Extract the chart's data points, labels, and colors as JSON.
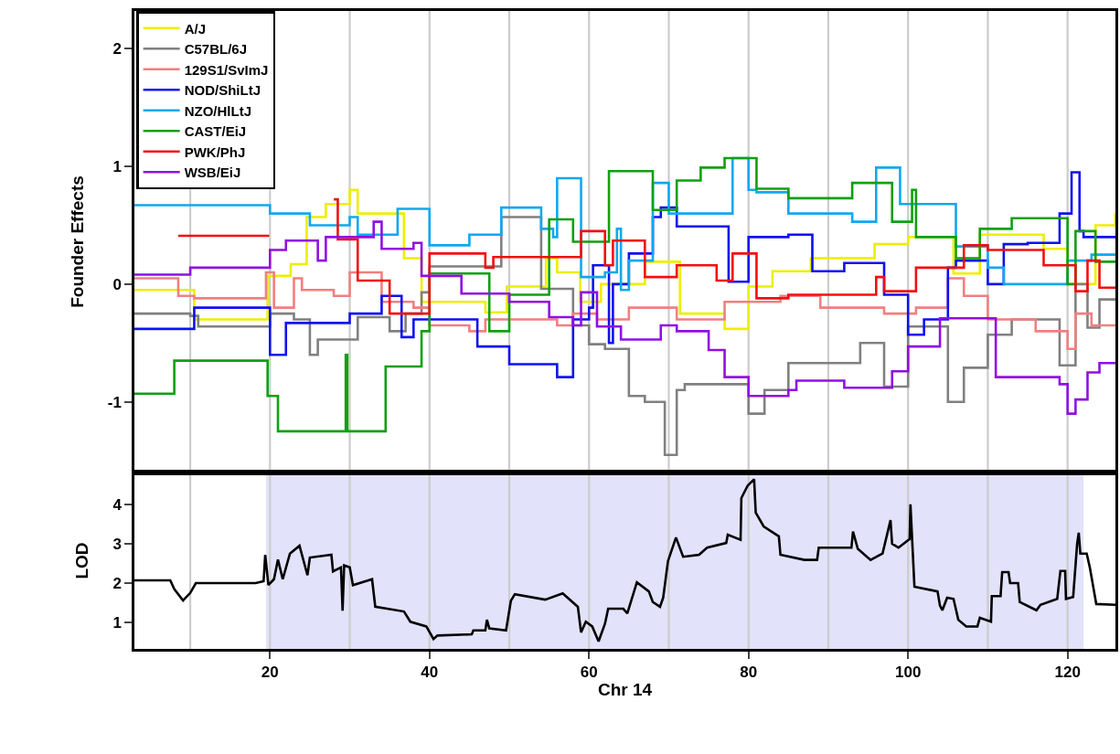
{
  "chart_data": [
    {
      "type": "step",
      "ylabel": "Founder Effects",
      "xlim": [
        3,
        126
      ],
      "ylim": [
        -1.6,
        2.32
      ],
      "yticks": [
        -1,
        0,
        1,
        2
      ],
      "tick_labels": "y",
      "legend": "top left",
      "ref_lines": [
        {
          "axis": "x",
          "value": 10,
          "color": "#cccccc"
        },
        {
          "axis": "x",
          "value": 20,
          "color": "#cccccc"
        },
        {
          "axis": "x",
          "value": 30,
          "color": "#cccccc"
        },
        {
          "axis": "x",
          "value": 40,
          "color": "#cccccc"
        },
        {
          "axis": "x",
          "value": 50,
          "color": "#cccccc"
        },
        {
          "axis": "x",
          "value": 60,
          "color": "#cccccc"
        },
        {
          "axis": "x",
          "value": 70,
          "color": "#cccccc"
        },
        {
          "axis": "x",
          "value": 80,
          "color": "#cccccc"
        },
        {
          "axis": "x",
          "value": 90,
          "color": "#cccccc"
        },
        {
          "axis": "x",
          "value": 100,
          "color": "#cccccc"
        },
        {
          "axis": "x",
          "value": 110,
          "color": "#cccccc"
        },
        {
          "axis": "x",
          "value": 120,
          "color": "#cccccc"
        }
      ],
      "series": [
        {
          "name": "A/J",
          "color": "#eeee00",
          "x": [
            3,
            10.5,
            19.7,
            22.6,
            24.6,
            27,
            30,
            31,
            36.8,
            39,
            43,
            47,
            49.7,
            54.6,
            56,
            58.9,
            61.5,
            67,
            71.4,
            77,
            80,
            83,
            87.8,
            95.8,
            100,
            105.7,
            109,
            117,
            120,
            123.5,
            126
          ],
          "values": [
            -0.05,
            -0.3,
            0.07,
            0.17,
            0.57,
            0.68,
            0.8,
            0.6,
            0.22,
            -0.15,
            -0.15,
            -0.24,
            -0.02,
            0.22,
            0.1,
            -0.15,
            0.0,
            0.19,
            -0.25,
            -0.38,
            -0.02,
            0.11,
            0.22,
            0.34,
            0.4,
            0.09,
            0.42,
            0.3,
            0.0,
            0.5,
            0.6
          ]
        },
        {
          "name": "C57BL/6J",
          "color": "#808080",
          "x": [
            3,
            10,
            11,
            20,
            23,
            25,
            26,
            31,
            35,
            37,
            39,
            40,
            49,
            54,
            58,
            60,
            62,
            65,
            67,
            69.5,
            71,
            72,
            80,
            82,
            85,
            94,
            97,
            100,
            105,
            107,
            110,
            113,
            119,
            121,
            122.5,
            124,
            126
          ],
          "values": [
            -0.25,
            -0.27,
            -0.36,
            -0.25,
            -0.3,
            -0.6,
            -0.47,
            -0.28,
            -0.4,
            -0.25,
            -0.07,
            0.15,
            0.57,
            -0.04,
            -0.35,
            -0.51,
            -0.55,
            -0.95,
            -1.0,
            -1.45,
            -0.9,
            -0.85,
            -1.1,
            -0.9,
            -0.67,
            -0.5,
            -0.87,
            -0.36,
            -1.0,
            -0.71,
            -0.43,
            -0.3,
            -0.69,
            0.0,
            -0.37,
            -0.13,
            -0.13
          ]
        },
        {
          "name": "129S1/SvImJ",
          "color": "#f08080",
          "x": [
            3,
            8.5,
            10.5,
            19.5,
            20.5,
            23,
            24,
            28,
            30,
            34,
            38,
            40,
            45,
            47,
            56,
            58,
            61,
            65,
            71,
            77,
            84,
            89,
            97,
            101,
            105,
            107,
            110,
            116,
            120,
            121,
            123,
            126
          ],
          "values": [
            0.05,
            -0.1,
            -0.12,
            0.1,
            -0.2,
            0.05,
            -0.05,
            -0.1,
            0.1,
            -0.15,
            -0.2,
            -0.35,
            -0.4,
            -0.3,
            -0.35,
            -0.25,
            -0.3,
            -0.2,
            -0.3,
            -0.15,
            -0.1,
            -0.2,
            -0.25,
            -0.2,
            0.05,
            -0.1,
            -0.3,
            -0.4,
            -0.55,
            -0.25,
            -0.35,
            -0.35
          ]
        },
        {
          "name": "NOD/ShiLtJ",
          "color": "#1010f0",
          "x": [
            3,
            10.5,
            20,
            22,
            30,
            34,
            36.5,
            38,
            43,
            46,
            50,
            56,
            58,
            60,
            60.5,
            62.5,
            63,
            65,
            68,
            69,
            71,
            77.5,
            80,
            85,
            88,
            92,
            97,
            100,
            102,
            105,
            106,
            110,
            112,
            115,
            119,
            120.5,
            121.5,
            122,
            126
          ],
          "values": [
            -0.38,
            -0.2,
            -0.6,
            -0.33,
            -0.25,
            -0.1,
            -0.45,
            -0.3,
            -0.3,
            -0.53,
            -0.68,
            -0.79,
            -0.3,
            -0.2,
            0.16,
            -0.5,
            0.0,
            0.26,
            0.57,
            0.65,
            0.49,
            0.02,
            0.4,
            0.42,
            0.11,
            0.18,
            -0.09,
            -0.43,
            -0.3,
            0.14,
            0.2,
            0.0,
            0.34,
            0.35,
            0.6,
            0.95,
            0.45,
            0.4,
            0.4
          ]
        },
        {
          "name": "NZO/HlLtJ",
          "color": "#10a8ef",
          "x": [
            3,
            20,
            25,
            30,
            31,
            36,
            40,
            45,
            49,
            54,
            55.5,
            56,
            59,
            62,
            63.5,
            64,
            65,
            68,
            70,
            78,
            80,
            81,
            85,
            93,
            96,
            99,
            106,
            110,
            112,
            120,
            123,
            126
          ],
          "values": [
            0.67,
            0.6,
            0.5,
            0.57,
            0.42,
            0.64,
            0.33,
            0.42,
            0.65,
            0.47,
            0.4,
            0.9,
            0.06,
            0.1,
            0.47,
            -0.05,
            0.2,
            0.86,
            0.6,
            1.07,
            0.8,
            0.78,
            0.6,
            0.53,
            0.99,
            0.68,
            0.32,
            0.14,
            0.0,
            0.2,
            0.25,
            0.25
          ]
        },
        {
          "name": "CAST/EiJ",
          "color": "#10a010",
          "x": [
            3,
            8,
            19.7,
            21,
            29.5,
            29.7,
            34.5,
            39,
            40,
            47.5,
            50,
            55,
            58,
            62.5,
            68,
            71,
            74,
            77,
            81,
            85,
            93,
            98,
            100.5,
            101,
            106,
            109,
            113,
            120,
            121,
            123.5,
            126
          ],
          "values": [
            -0.93,
            -0.65,
            -0.95,
            -1.25,
            -0.6,
            -1.25,
            -0.7,
            -0.4,
            0.09,
            -0.4,
            -0.09,
            0.55,
            0.36,
            0.96,
            0.63,
            0.88,
            0.99,
            1.07,
            0.81,
            0.73,
            0.86,
            0.53,
            0.8,
            0.4,
            0.22,
            0.47,
            0.56,
            0.0,
            0.45,
            0.19,
            0.19
          ]
        },
        {
          "name": "PWK/PhJ",
          "color": "#f01010",
          "x": [
            8.5,
            19.9,
            20,
            28,
            28.5,
            31,
            35,
            40,
            47,
            48,
            59,
            62,
            63,
            67,
            71,
            76,
            78,
            81,
            85,
            96,
            97,
            101,
            107,
            110,
            117,
            121,
            122.5,
            124,
            126
          ],
          "values": [
            0.41,
            0.41,
            null,
            0.72,
            0.38,
            0.03,
            -0.25,
            0.26,
            0.14,
            0.23,
            0.45,
            0.16,
            0.37,
            0.06,
            0.16,
            0.03,
            0.26,
            -0.12,
            -0.09,
            0.06,
            -0.06,
            0.14,
            0.33,
            0.29,
            0.16,
            -0.06,
            0.2,
            -0.03,
            -0.03
          ]
        },
        {
          "name": "WSB/EiJ",
          "color": "#9010e0",
          "x": [
            3,
            10,
            20,
            22,
            26,
            27,
            33,
            34,
            38,
            39,
            44,
            50,
            55,
            58,
            59,
            61,
            64,
            69,
            71,
            75,
            77,
            80,
            85,
            86,
            92,
            98,
            100,
            104,
            111,
            119,
            120,
            121,
            122.5,
            124,
            126
          ],
          "values": [
            0.08,
            0.14,
            0.29,
            0.37,
            0.2,
            0.4,
            0.53,
            0.3,
            0.35,
            0.07,
            -0.08,
            -0.15,
            -0.28,
            -0.35,
            -0.07,
            -0.36,
            -0.47,
            -0.35,
            -0.4,
            -0.56,
            -0.79,
            -0.95,
            -0.9,
            -0.82,
            -0.88,
            -0.74,
            -0.53,
            -0.29,
            -0.79,
            -0.85,
            -1.1,
            -0.98,
            -0.75,
            -0.67,
            -0.67
          ]
        }
      ]
    },
    {
      "type": "line",
      "ylabel": "LOD",
      "xlabel": "Chr 14",
      "xlim": [
        3,
        126
      ],
      "xticks": [
        20,
        40,
        60,
        80,
        100,
        120
      ],
      "ylim": [
        0.33,
        4.81
      ],
      "yticks": [
        1,
        2,
        3,
        4
      ],
      "color": "#000000",
      "ref_lines": [
        {
          "axis": "x",
          "value": 10,
          "color": "#cccccc"
        },
        {
          "axis": "x",
          "value": 20,
          "color": "#cccccc"
        },
        {
          "axis": "x",
          "value": 30,
          "color": "#cccccc"
        },
        {
          "axis": "x",
          "value": 40,
          "color": "#cccccc"
        },
        {
          "axis": "x",
          "value": 50,
          "color": "#cccccc"
        },
        {
          "axis": "x",
          "value": 60,
          "color": "#cccccc"
        },
        {
          "axis": "x",
          "value": 70,
          "color": "#cccccc"
        },
        {
          "axis": "x",
          "value": 80,
          "color": "#cccccc"
        },
        {
          "axis": "x",
          "value": 90,
          "color": "#cccccc"
        },
        {
          "axis": "x",
          "value": 100,
          "color": "#cccccc"
        },
        {
          "axis": "x",
          "value": 110,
          "color": "#cccccc"
        },
        {
          "axis": "x",
          "value": 120,
          "color": "#cccccc"
        }
      ],
      "bands": [
        {
          "axis": "x",
          "from": 19.5,
          "to": 122,
          "color": "#e2e2fb"
        }
      ],
      "x": [
        3,
        7.5,
        8,
        9.1,
        10,
        10.7,
        18.2,
        19.2,
        19.4,
        19.8,
        20.5,
        21,
        21.6,
        22.5,
        23.7,
        24.3,
        24.7,
        25,
        27.7,
        27.9,
        28.9,
        29.1,
        29.3,
        30,
        30.4,
        32.8,
        33.2,
        36.8,
        37.6,
        39.6,
        40.5,
        41,
        45.3,
        45.5,
        47,
        47.2,
        47.5,
        49.6,
        50.2,
        50.7,
        54.5,
        56.7,
        58.6,
        59,
        59.6,
        60.4,
        61.2,
        62,
        62.4,
        64.3,
        64.8,
        66,
        67.5,
        68,
        68.9,
        69.3,
        69.9,
        70.9,
        71.8,
        73.8,
        74.8,
        77.2,
        77.4,
        79,
        79.1,
        79.9,
        80.7,
        80.9,
        81.9,
        83.8,
        84,
        87,
        88.6,
        88.8,
        92.9,
        93.1,
        93.7,
        95.3,
        96.8,
        97.8,
        98,
        98.8,
        100.2,
        100.3,
        100.8,
        103.7,
        104,
        104.3,
        104.9,
        105.7,
        106.3,
        107.3,
        108.7,
        109,
        110.4,
        110.5,
        111.6,
        111.8,
        112.6,
        112.8,
        113.8,
        114,
        116.1,
        116.6,
        118.7,
        119.1,
        119.7,
        119.8,
        120.7,
        121.2,
        121.4,
        121.6,
        122.4,
        122.8,
        123.6,
        126
      ],
      "values": [
        2.07,
        2.07,
        1.85,
        1.56,
        1.75,
        2.0,
        2.0,
        2.05,
        2.72,
        1.95,
        2.1,
        2.6,
        2.1,
        2.75,
        2.95,
        2.5,
        2.2,
        2.65,
        2.72,
        2.3,
        2.4,
        1.3,
        2.45,
        2.4,
        1.95,
        2.1,
        1.4,
        1.28,
        1.02,
        0.9,
        0.58,
        0.67,
        0.7,
        0.8,
        0.8,
        1.07,
        0.85,
        0.8,
        1.55,
        1.72,
        1.58,
        1.74,
        1.4,
        0.75,
        1.02,
        0.9,
        0.52,
        0.97,
        1.35,
        1.35,
        1.23,
        2.02,
        1.79,
        1.52,
        1.4,
        1.63,
        2.56,
        3.16,
        2.67,
        2.72,
        2.9,
        3.02,
        3.23,
        3.1,
        4.16,
        4.48,
        4.64,
        3.79,
        3.44,
        3.19,
        2.72,
        2.59,
        2.59,
        2.9,
        2.9,
        3.31,
        2.87,
        2.59,
        2.75,
        3.6,
        3.0,
        2.9,
        3.12,
        4.0,
        1.91,
        1.79,
        1.43,
        1.31,
        1.63,
        1.6,
        1.07,
        0.9,
        0.9,
        1.12,
        1.02,
        1.67,
        1.67,
        2.28,
        2.28,
        2.0,
        2.0,
        1.52,
        1.31,
        1.45,
        1.6,
        2.31,
        2.31,
        1.6,
        1.65,
        3.0,
        3.28,
        2.75,
        2.75,
        2.39,
        1.47,
        1.45
      ]
    }
  ]
}
